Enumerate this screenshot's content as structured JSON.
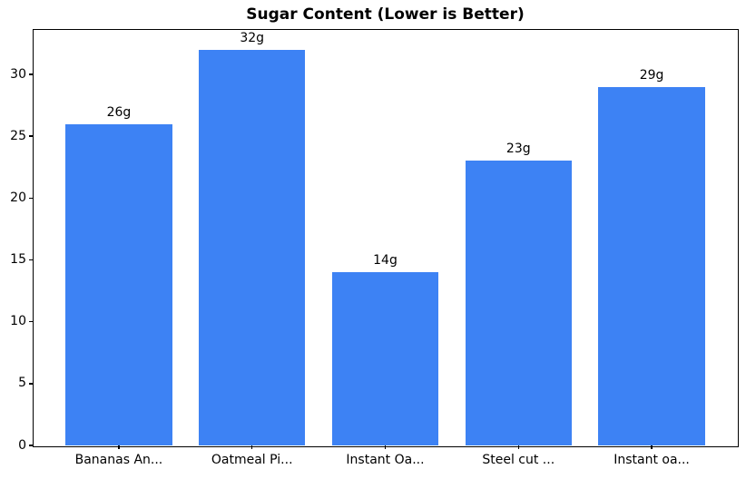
{
  "figure": {
    "background": "#ffffff",
    "text_color": "#000000",
    "axis_color": "#000000"
  },
  "chart_data": {
    "type": "bar",
    "title": "Sugar Content (Lower is Better)",
    "categories": [
      "Bananas An...",
      "Oatmeal Pi...",
      "Instant Oa...",
      "Steel cut ...",
      "Instant oa..."
    ],
    "values": [
      26,
      32,
      14,
      23,
      29
    ],
    "value_labels": [
      "26g",
      "32g",
      "14g",
      "23g",
      "29g"
    ],
    "bar_color": "#3d82f4",
    "xlabel": "",
    "ylabel": "",
    "ylim": [
      0,
      33.6
    ],
    "yticks": [
      0,
      5,
      10,
      15,
      20,
      25,
      30
    ],
    "grid": false,
    "legend": null
  }
}
